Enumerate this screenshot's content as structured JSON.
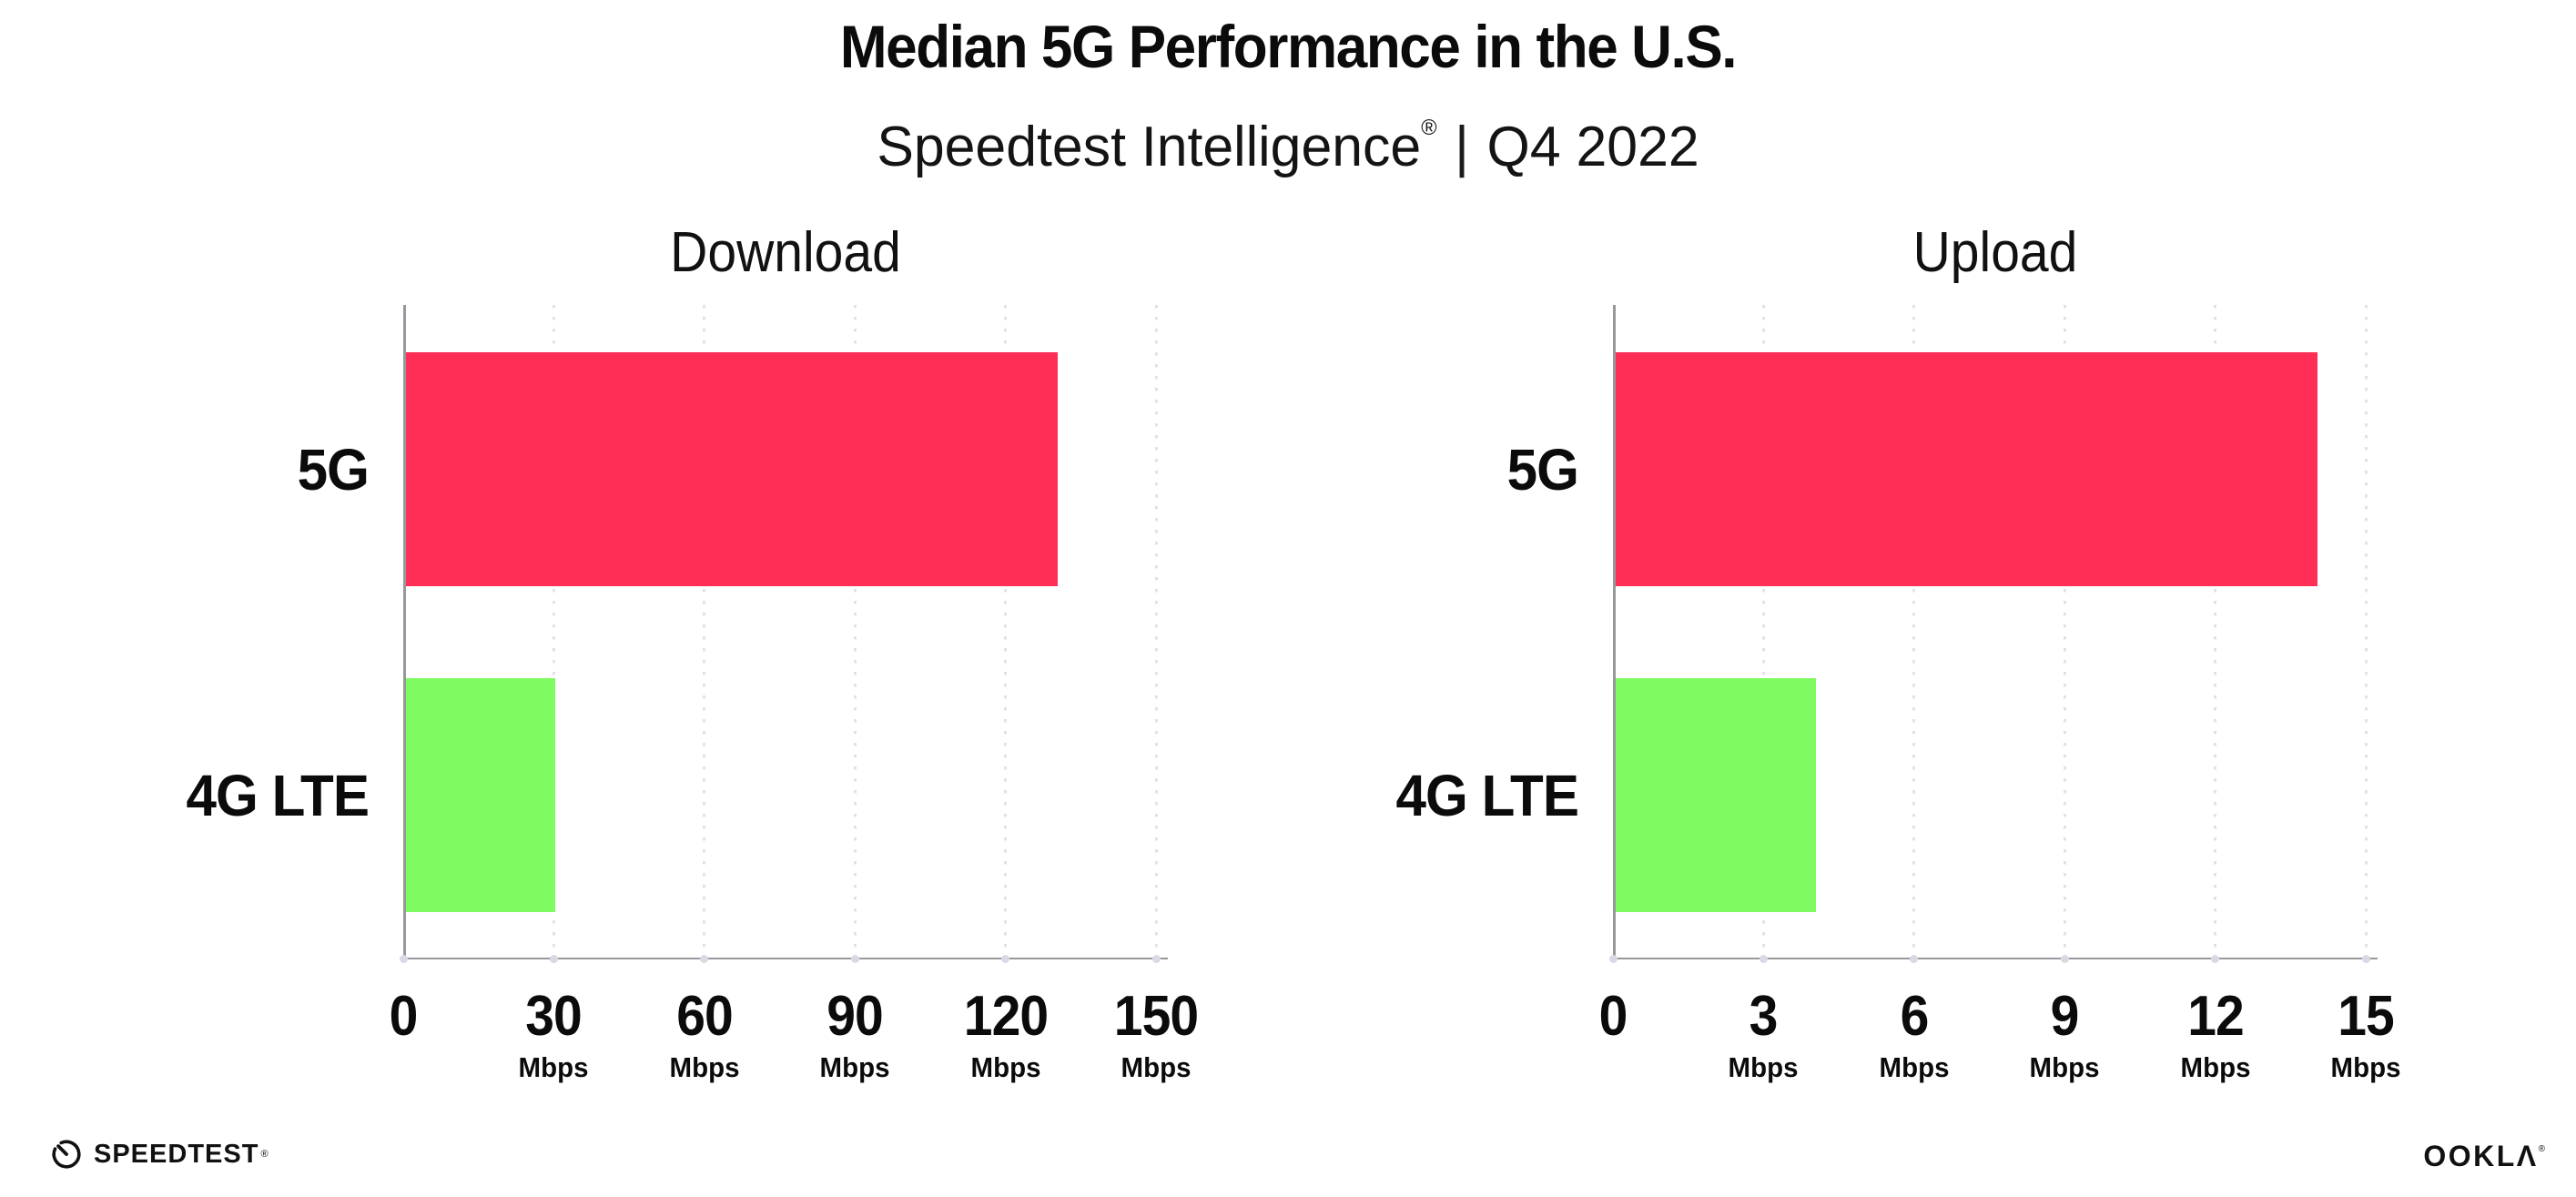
{
  "header": {
    "title": "Median 5G Performance in the U.S.",
    "subtitle": {
      "brand": "Speedtest Intelligence",
      "reg_mark": "®",
      "divider": "|",
      "period": "Q4 2022"
    }
  },
  "chart_data": [
    {
      "type": "bar",
      "orientation": "horizontal",
      "title": "Download",
      "categories": [
        "5G",
        "4G LTE"
      ],
      "values": [
        130,
        30
      ],
      "unit": "Mbps",
      "xlim": [
        0,
        150
      ],
      "xticks": [
        0,
        30,
        60,
        90,
        120,
        150
      ],
      "bar_colors": [
        "#ff2e57",
        "#7ffa60"
      ],
      "grid": "dotted-vertical",
      "legend": "none"
    },
    {
      "type": "bar",
      "orientation": "horizontal",
      "title": "Upload",
      "categories": [
        "5G",
        "4G LTE"
      ],
      "values": [
        14,
        4
      ],
      "unit": "Mbps",
      "xlim": [
        0,
        15
      ],
      "xticks": [
        0,
        3,
        6,
        9,
        12,
        15
      ],
      "bar_colors": [
        "#ff2e57",
        "#7ffa60"
      ],
      "grid": "dotted-vertical",
      "legend": "none"
    }
  ],
  "footer": {
    "speedtest": {
      "label": "SPEEDTEST",
      "mark": "®"
    },
    "ookla": {
      "label": "OOKLA",
      "display": "OOKLΛ",
      "mark": "®"
    }
  },
  "colors": {
    "bar_5g": "#ff2e57",
    "bar_4g_lte": "#7ffa60",
    "axis_line": "#97979e",
    "grid_dot": "#e1e1eb",
    "text": "#0b0b0b",
    "background": "#ffffff"
  }
}
